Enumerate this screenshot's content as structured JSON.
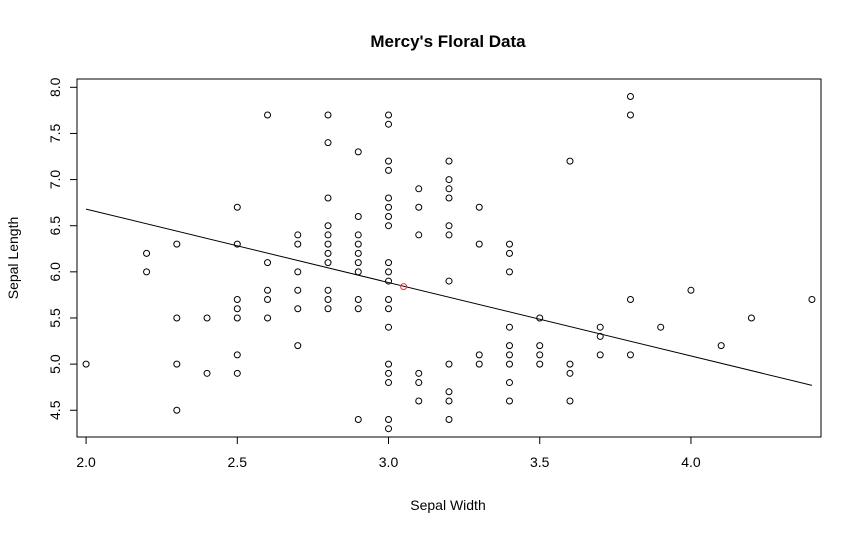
{
  "chart_data": {
    "type": "scatter",
    "title": "Mercy's Floral Data",
    "xlabel": "Sepal Width",
    "ylabel": "Sepal Length",
    "xlim": [
      1.97,
      4.43
    ],
    "ylim": [
      4.21,
      8.09
    ],
    "x_ticks": [
      "2.0",
      "2.5",
      "3.0",
      "3.5",
      "4.0"
    ],
    "y_ticks": [
      "4.5",
      "5.0",
      "5.5",
      "6.0",
      "6.5",
      "7.0",
      "7.5",
      "8.0"
    ],
    "grid": false,
    "legend": "none",
    "colors": {
      "points": "#000000",
      "mean_point": "#e0383e",
      "line": "#000000"
    },
    "series": [
      {
        "points": [
          [
            2.0,
            5.0
          ],
          [
            2.2,
            6.0
          ],
          [
            2.2,
            6.2
          ],
          [
            2.3,
            4.5
          ],
          [
            2.3,
            5.0
          ],
          [
            2.3,
            5.5
          ],
          [
            2.3,
            6.3
          ],
          [
            2.4,
            4.9
          ],
          [
            2.4,
            5.5
          ],
          [
            2.5,
            4.9
          ],
          [
            2.5,
            5.1
          ],
          [
            2.5,
            5.5
          ],
          [
            2.5,
            5.6
          ],
          [
            2.5,
            5.7
          ],
          [
            2.5,
            6.3
          ],
          [
            2.5,
            6.7
          ],
          [
            2.6,
            5.5
          ],
          [
            2.6,
            5.7
          ],
          [
            2.6,
            5.8
          ],
          [
            2.6,
            6.1
          ],
          [
            2.6,
            7.7
          ],
          [
            2.7,
            5.2
          ],
          [
            2.7,
            5.6
          ],
          [
            2.7,
            5.8
          ],
          [
            2.7,
            6.0
          ],
          [
            2.7,
            6.3
          ],
          [
            2.7,
            6.4
          ],
          [
            2.8,
            5.6
          ],
          [
            2.8,
            5.7
          ],
          [
            2.8,
            5.8
          ],
          [
            2.8,
            6.1
          ],
          [
            2.8,
            6.2
          ],
          [
            2.8,
            6.3
          ],
          [
            2.8,
            6.4
          ],
          [
            2.8,
            6.5
          ],
          [
            2.8,
            6.8
          ],
          [
            2.8,
            7.4
          ],
          [
            2.8,
            7.7
          ],
          [
            2.9,
            4.4
          ],
          [
            2.9,
            5.6
          ],
          [
            2.9,
            5.7
          ],
          [
            2.9,
            6.0
          ],
          [
            2.9,
            6.1
          ],
          [
            2.9,
            6.2
          ],
          [
            2.9,
            6.3
          ],
          [
            2.9,
            6.4
          ],
          [
            2.9,
            6.6
          ],
          [
            2.9,
            7.3
          ],
          [
            3.0,
            4.3
          ],
          [
            3.0,
            4.4
          ],
          [
            3.0,
            4.8
          ],
          [
            3.0,
            4.9
          ],
          [
            3.0,
            5.0
          ],
          [
            3.0,
            5.4
          ],
          [
            3.0,
            5.6
          ],
          [
            3.0,
            5.7
          ],
          [
            3.0,
            5.9
          ],
          [
            3.0,
            6.0
          ],
          [
            3.0,
            6.1
          ],
          [
            3.0,
            6.5
          ],
          [
            3.0,
            6.6
          ],
          [
            3.0,
            6.7
          ],
          [
            3.0,
            6.8
          ],
          [
            3.0,
            7.1
          ],
          [
            3.0,
            7.2
          ],
          [
            3.0,
            7.6
          ],
          [
            3.0,
            7.7
          ],
          [
            3.1,
            4.6
          ],
          [
            3.1,
            4.8
          ],
          [
            3.1,
            4.9
          ],
          [
            3.1,
            6.4
          ],
          [
            3.1,
            6.7
          ],
          [
            3.1,
            6.9
          ],
          [
            3.2,
            4.4
          ],
          [
            3.2,
            4.6
          ],
          [
            3.2,
            4.7
          ],
          [
            3.2,
            5.0
          ],
          [
            3.2,
            5.9
          ],
          [
            3.2,
            6.4
          ],
          [
            3.2,
            6.5
          ],
          [
            3.2,
            6.8
          ],
          [
            3.2,
            6.9
          ],
          [
            3.2,
            7.0
          ],
          [
            3.2,
            7.2
          ],
          [
            3.3,
            5.0
          ],
          [
            3.3,
            5.1
          ],
          [
            3.3,
            6.3
          ],
          [
            3.3,
            6.7
          ],
          [
            3.4,
            4.6
          ],
          [
            3.4,
            4.8
          ],
          [
            3.4,
            5.0
          ],
          [
            3.4,
            5.1
          ],
          [
            3.4,
            5.2
          ],
          [
            3.4,
            5.4
          ],
          [
            3.4,
            6.0
          ],
          [
            3.4,
            6.2
          ],
          [
            3.4,
            6.3
          ],
          [
            3.5,
            5.0
          ],
          [
            3.5,
            5.1
          ],
          [
            3.5,
            5.2
          ],
          [
            3.5,
            5.5
          ],
          [
            3.6,
            4.6
          ],
          [
            3.6,
            4.9
          ],
          [
            3.6,
            5.0
          ],
          [
            3.6,
            7.2
          ],
          [
            3.7,
            5.1
          ],
          [
            3.7,
            5.3
          ],
          [
            3.7,
            5.4
          ],
          [
            3.8,
            5.1
          ],
          [
            3.8,
            5.7
          ],
          [
            3.8,
            7.7
          ],
          [
            3.8,
            7.9
          ],
          [
            3.9,
            5.4
          ],
          [
            4.0,
            5.8
          ],
          [
            4.1,
            5.2
          ],
          [
            4.2,
            5.5
          ],
          [
            4.4,
            5.7
          ]
        ]
      }
    ],
    "mean_point": [
      3.05,
      5.84
    ],
    "regression_line": {
      "x": [
        2.0,
        4.4
      ],
      "y": [
        6.68,
        4.77
      ]
    }
  }
}
